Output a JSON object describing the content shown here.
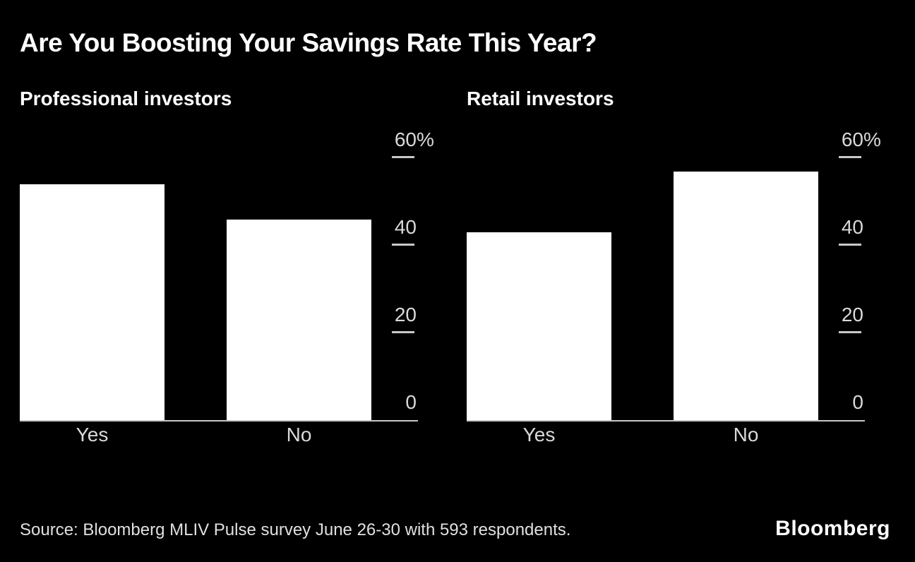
{
  "title": "Are You Boosting Your Savings Rate This Year?",
  "footer": {
    "source": "Source: Bloomberg MLIV Pulse survey June 26-30 with 593 respondents.",
    "logo": "Bloomberg"
  },
  "colors": {
    "background": "#000000",
    "bar": "#ffffff",
    "title_text": "#ffffff",
    "subtitle_text": "#ffffff",
    "axis_text": "#d9d9d9",
    "axis_line": "#c8c8c8",
    "source_text": "#e0e0e0",
    "logo_text": "#ffffff"
  },
  "chart_data": [
    {
      "type": "bar",
      "title": "Professional investors",
      "categories": [
        "Yes",
        "No"
      ],
      "values": [
        54,
        46
      ],
      "unit": "%",
      "xlabel": "",
      "ylabel": "",
      "ylim": [
        0,
        60
      ],
      "axis_side": "right",
      "grid": false,
      "bar_color": "#ffffff",
      "yticks": [
        {
          "value": 0,
          "label": "0",
          "suffix": ""
        },
        {
          "value": 20,
          "label": "20",
          "suffix": ""
        },
        {
          "value": 40,
          "label": "40",
          "suffix": ""
        },
        {
          "value": 60,
          "label": "60",
          "suffix": "%"
        }
      ]
    },
    {
      "type": "bar",
      "title": "Retail investors",
      "categories": [
        "Yes",
        "No"
      ],
      "values": [
        43,
        57
      ],
      "unit": "%",
      "xlabel": "",
      "ylabel": "",
      "ylim": [
        0,
        60
      ],
      "axis_side": "right",
      "grid": false,
      "bar_color": "#ffffff",
      "yticks": [
        {
          "value": 0,
          "label": "0",
          "suffix": ""
        },
        {
          "value": 20,
          "label": "20",
          "suffix": ""
        },
        {
          "value": 40,
          "label": "40",
          "suffix": ""
        },
        {
          "value": 60,
          "label": "60",
          "suffix": "%"
        }
      ]
    }
  ]
}
